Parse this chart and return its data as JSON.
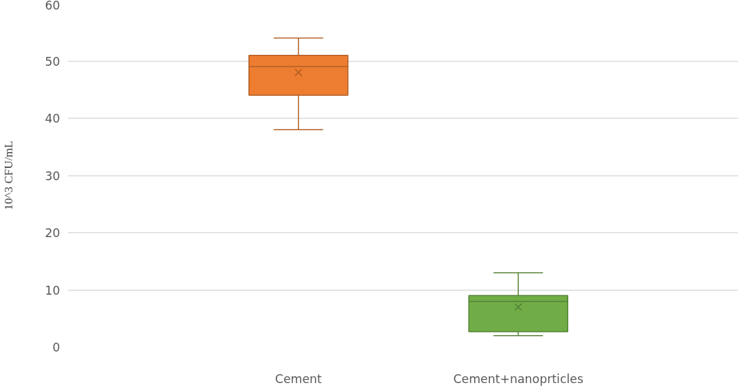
{
  "chart_data": {
    "type": "box",
    "ylabel": "10^3 CFU/mL",
    "categories": [
      "Cement",
      "Cement+nanoprticles"
    ],
    "colors": [
      "#ed7d31",
      "#70ad47"
    ],
    "boxes": [
      {
        "low": 38,
        "q1": 44,
        "median": 49,
        "q3": 51,
        "high": 54,
        "mean": 48
      },
      {
        "low": 2,
        "q1": 2.7,
        "median": 8,
        "q3": 9,
        "high": 13,
        "mean": 7
      }
    ],
    "ylim": [
      0,
      60
    ],
    "yticks": [
      0,
      10,
      20,
      30,
      40,
      50,
      60
    ],
    "grid": "y"
  }
}
